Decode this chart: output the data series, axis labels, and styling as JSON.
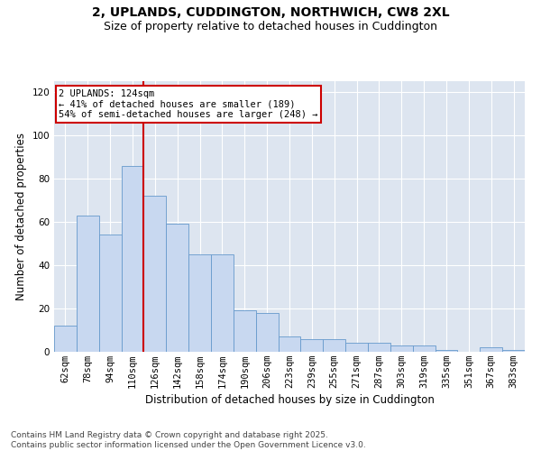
{
  "title_line1": "2, UPLANDS, CUDDINGTON, NORTHWICH, CW8 2XL",
  "title_line2": "Size of property relative to detached houses in Cuddington",
  "xlabel": "Distribution of detached houses by size in Cuddington",
  "ylabel": "Number of detached properties",
  "categories": [
    "62sqm",
    "78sqm",
    "94sqm",
    "110sqm",
    "126sqm",
    "142sqm",
    "158sqm",
    "174sqm",
    "190sqm",
    "206sqm",
    "223sqm",
    "239sqm",
    "255sqm",
    "271sqm",
    "287sqm",
    "303sqm",
    "319sqm",
    "335sqm",
    "351sqm",
    "367sqm",
    "383sqm"
  ],
  "values": [
    12,
    63,
    54,
    86,
    72,
    59,
    45,
    45,
    19,
    18,
    7,
    6,
    6,
    4,
    4,
    3,
    3,
    1,
    0,
    2,
    1
  ],
  "bar_color": "#c8d8f0",
  "bar_edge_color": "#6699cc",
  "vline_x": 4.5,
  "vline_color": "#cc0000",
  "annotation_text": "2 UPLANDS: 124sqm\n← 41% of detached houses are smaller (189)\n54% of semi-detached houses are larger (248) →",
  "annotation_box_color": "white",
  "annotation_box_edge_color": "#cc0000",
  "ylim": [
    0,
    125
  ],
  "yticks": [
    0,
    20,
    40,
    60,
    80,
    100,
    120
  ],
  "background_color": "#dde5f0",
  "footnote": "Contains HM Land Registry data © Crown copyright and database right 2025.\nContains public sector information licensed under the Open Government Licence v3.0.",
  "title_fontsize": 10,
  "subtitle_fontsize": 9,
  "xlabel_fontsize": 8.5,
  "ylabel_fontsize": 8.5,
  "tick_fontsize": 7.5,
  "annotation_fontsize": 7.5,
  "footnote_fontsize": 6.5
}
